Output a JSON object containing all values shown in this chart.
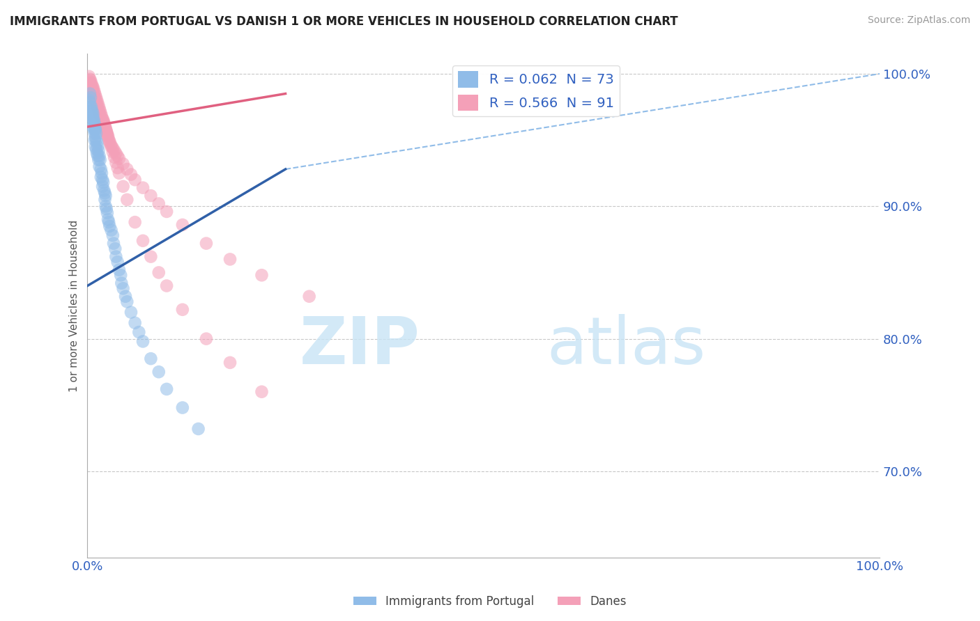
{
  "title": "IMMIGRANTS FROM PORTUGAL VS DANISH 1 OR MORE VEHICLES IN HOUSEHOLD CORRELATION CHART",
  "source": "Source: ZipAtlas.com",
  "ylabel": "1 or more Vehicles in Household",
  "ytick_labels": [
    "70.0%",
    "80.0%",
    "90.0%",
    "100.0%"
  ],
  "ytick_values": [
    0.7,
    0.8,
    0.9,
    1.0
  ],
  "legend_blue_label": "R = 0.062  N = 73",
  "legend_pink_label": "R = 0.566  N = 91",
  "scatter_blue_color": "#90BCE8",
  "scatter_pink_color": "#F4A0B8",
  "line_blue_color": "#3060A8",
  "line_pink_color": "#E06080",
  "dashed_line_color": "#90BCE8",
  "grid_color": "#C8C8C8",
  "watermark_zip": "ZIP",
  "watermark_atlas": "atlas",
  "blue_x": [
    0.002,
    0.004,
    0.005,
    0.006,
    0.006,
    0.007,
    0.007,
    0.008,
    0.008,
    0.009,
    0.009,
    0.009,
    0.01,
    0.01,
    0.01,
    0.011,
    0.011,
    0.012,
    0.012,
    0.013,
    0.013,
    0.014,
    0.014,
    0.015,
    0.015,
    0.016,
    0.017,
    0.017,
    0.018,
    0.019,
    0.019,
    0.02,
    0.021,
    0.022,
    0.022,
    0.023,
    0.023,
    0.024,
    0.025,
    0.026,
    0.027,
    0.028,
    0.03,
    0.032,
    0.033,
    0.035,
    0.036,
    0.038,
    0.04,
    0.042,
    0.043,
    0.045,
    0.048,
    0.05,
    0.055,
    0.06,
    0.065,
    0.07,
    0.08,
    0.09,
    0.1,
    0.12,
    0.14,
    0.003,
    0.003,
    0.004,
    0.005,
    0.006,
    0.007,
    0.008,
    0.009,
    0.01,
    0.011
  ],
  "blue_y": [
    0.98,
    0.975,
    0.972,
    0.968,
    0.965,
    0.97,
    0.96,
    0.965,
    0.958,
    0.962,
    0.955,
    0.95,
    0.958,
    0.952,
    0.945,
    0.95,
    0.943,
    0.948,
    0.94,
    0.945,
    0.938,
    0.942,
    0.935,
    0.938,
    0.93,
    0.935,
    0.928,
    0.922,
    0.925,
    0.92,
    0.915,
    0.918,
    0.912,
    0.91,
    0.905,
    0.908,
    0.9,
    0.898,
    0.895,
    0.89,
    0.888,
    0.885,
    0.882,
    0.878,
    0.872,
    0.868,
    0.862,
    0.858,
    0.852,
    0.848,
    0.842,
    0.838,
    0.832,
    0.828,
    0.82,
    0.812,
    0.805,
    0.798,
    0.785,
    0.775,
    0.762,
    0.748,
    0.732,
    0.985,
    0.978,
    0.982,
    0.975,
    0.972,
    0.968,
    0.965,
    0.962,
    0.958,
    0.955
  ],
  "pink_x": [
    0.002,
    0.003,
    0.003,
    0.004,
    0.004,
    0.005,
    0.005,
    0.006,
    0.006,
    0.007,
    0.007,
    0.008,
    0.008,
    0.009,
    0.009,
    0.01,
    0.01,
    0.011,
    0.011,
    0.012,
    0.012,
    0.013,
    0.013,
    0.014,
    0.014,
    0.015,
    0.015,
    0.016,
    0.016,
    0.017,
    0.018,
    0.019,
    0.02,
    0.021,
    0.022,
    0.023,
    0.024,
    0.025,
    0.026,
    0.027,
    0.028,
    0.03,
    0.032,
    0.034,
    0.036,
    0.038,
    0.04,
    0.045,
    0.05,
    0.055,
    0.06,
    0.07,
    0.08,
    0.09,
    0.1,
    0.12,
    0.15,
    0.18,
    0.22,
    0.28,
    0.02,
    0.021,
    0.022,
    0.023,
    0.024,
    0.025,
    0.026,
    0.028,
    0.03,
    0.032,
    0.034,
    0.036,
    0.038,
    0.04,
    0.045,
    0.05,
    0.06,
    0.07,
    0.08,
    0.09,
    0.1,
    0.12,
    0.15,
    0.18,
    0.22,
    0.006,
    0.007,
    0.008,
    0.009,
    0.01,
    0.011
  ],
  "pink_y": [
    0.998,
    0.996,
    0.994,
    0.995,
    0.992,
    0.993,
    0.99,
    0.991,
    0.988,
    0.99,
    0.986,
    0.988,
    0.984,
    0.986,
    0.982,
    0.984,
    0.98,
    0.982,
    0.978,
    0.98,
    0.976,
    0.978,
    0.974,
    0.976,
    0.972,
    0.974,
    0.97,
    0.972,
    0.968,
    0.97,
    0.968,
    0.966,
    0.964,
    0.962,
    0.96,
    0.958,
    0.956,
    0.954,
    0.952,
    0.95,
    0.948,
    0.946,
    0.944,
    0.942,
    0.94,
    0.938,
    0.936,
    0.932,
    0.928,
    0.924,
    0.92,
    0.914,
    0.908,
    0.902,
    0.896,
    0.886,
    0.872,
    0.86,
    0.848,
    0.832,
    0.965,
    0.963,
    0.961,
    0.959,
    0.957,
    0.955,
    0.953,
    0.949,
    0.945,
    0.941,
    0.937,
    0.933,
    0.929,
    0.925,
    0.915,
    0.905,
    0.888,
    0.874,
    0.862,
    0.85,
    0.84,
    0.822,
    0.8,
    0.782,
    0.76,
    0.988,
    0.986,
    0.984,
    0.982,
    0.98,
    0.978
  ],
  "xlim": [
    0.0,
    1.0
  ],
  "ylim": [
    0.635,
    1.015
  ],
  "blue_trendline": [
    0.0,
    0.25,
    0.84,
    0.928
  ],
  "pink_trendline": [
    0.0,
    0.25,
    0.96,
    0.985
  ],
  "dash_line": [
    0.0,
    1.0,
    0.84,
    1.0
  ]
}
